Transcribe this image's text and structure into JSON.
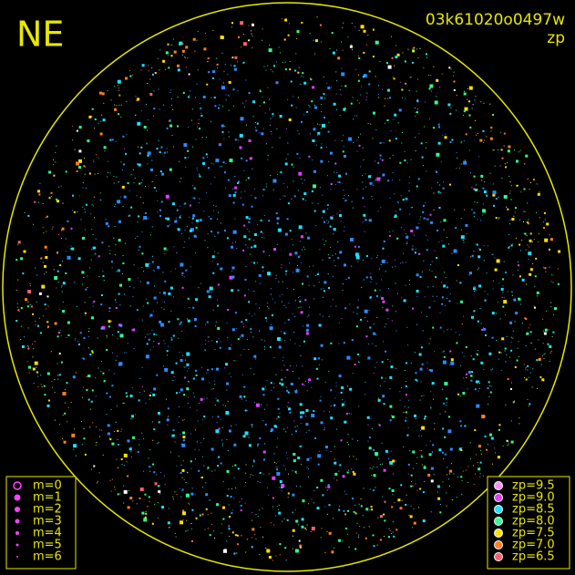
{
  "camera": {
    "direction": "NE",
    "image_id": "03k61020o0497w",
    "filter": "zp"
  },
  "magnitude_legend": [
    "m=0",
    "m=1",
    "m=2",
    "m=3",
    "m=4",
    "m=5",
    "m=6"
  ],
  "zp_legend": [
    {
      "label": "zp=9.5",
      "color": "#ff90ff"
    },
    {
      "label": "zp=9.0",
      "color": "#e040ff"
    },
    {
      "label": "zp=8.5",
      "color": "#20e0ff"
    },
    {
      "label": "zp=8.0",
      "color": "#30ff90"
    },
    {
      "label": "zp=7.5",
      "color": "#ffe000"
    },
    {
      "label": "zp=7.0",
      "color": "#ff8020"
    },
    {
      "label": "zp=6.5",
      "color": "#ff6070"
    }
  ]
}
